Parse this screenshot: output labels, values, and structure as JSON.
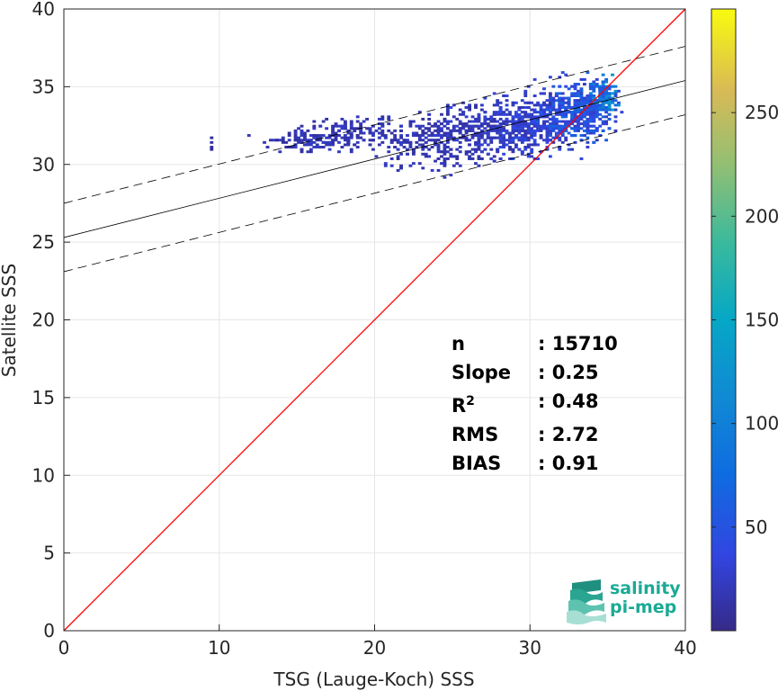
{
  "chart_data": {
    "type": "heatmap",
    "xlabel": "TSG (Lauge-Koch) SSS",
    "ylabel": "Satellite SSS",
    "xlim": [
      0,
      40
    ],
    "ylim": [
      0,
      40
    ],
    "xticks": [
      "0",
      "10",
      "20",
      "30",
      "40"
    ],
    "yticks": [
      "0",
      "5",
      "10",
      "15",
      "20",
      "25",
      "30",
      "35",
      "40"
    ],
    "grid": true,
    "colorbar": {
      "range": [
        0,
        300
      ],
      "ticks": [
        "50",
        "100",
        "150",
        "200",
        "250"
      ],
      "tick_values": [
        50,
        100,
        150,
        200,
        250
      ],
      "colormap": "parula"
    },
    "lines": [
      {
        "role": "identity",
        "color": "#ff0000",
        "x": [
          0,
          40
        ],
        "y": [
          0,
          40
        ]
      },
      {
        "role": "regression",
        "color": "#000000",
        "x": [
          0,
          40
        ],
        "y": [
          25.3,
          35.4
        ]
      },
      {
        "role": "upper-bound",
        "color": "#000000",
        "dash": true,
        "x": [
          0,
          40
        ],
        "y": [
          27.5,
          37.6
        ]
      },
      {
        "role": "lower-bound",
        "color": "#000000",
        "dash": true,
        "x": [
          0,
          40
        ],
        "y": [
          23.1,
          33.2
        ]
      }
    ],
    "density_clusters": [
      {
        "x": 9.3,
        "y": 31.5,
        "sx": 0.2,
        "sy": 0.3,
        "n": 4,
        "c": 10
      },
      {
        "x": 15.5,
        "y": 31.5,
        "sx": 1.1,
        "sy": 0.35,
        "n": 90,
        "c": 20
      },
      {
        "x": 19.0,
        "y": 31.9,
        "sx": 1.8,
        "sy": 0.5,
        "n": 160,
        "c": 20
      },
      {
        "x": 24.0,
        "y": 31.5,
        "sx": 2.0,
        "sy": 0.9,
        "n": 260,
        "c": 20
      },
      {
        "x": 27.5,
        "y": 32.3,
        "sx": 1.6,
        "sy": 0.8,
        "n": 260,
        "c": 25
      },
      {
        "x": 30.5,
        "y": 32.6,
        "sx": 1.4,
        "sy": 1.0,
        "n": 360,
        "c": 35
      },
      {
        "x": 33.2,
        "y": 33.5,
        "sx": 1.0,
        "sy": 0.9,
        "n": 420,
        "c": 55
      },
      {
        "x": 34.8,
        "y": 34.4,
        "sx": 0.4,
        "sy": 0.5,
        "n": 120,
        "c": 110
      }
    ],
    "stats": [
      {
        "key": "n",
        "value": ": 15710"
      },
      {
        "key": "Slope",
        "value": ": 0.25"
      },
      {
        "key": "R",
        "sup": "2",
        "value": ": 0.48"
      },
      {
        "key": "RMS",
        "value": ": 2.72"
      },
      {
        "key": "BIAS",
        "value": ": 0.91"
      }
    ]
  },
  "logo": {
    "line1": "salinity",
    "line2": "pi-mep",
    "color": "#1aaa95"
  }
}
